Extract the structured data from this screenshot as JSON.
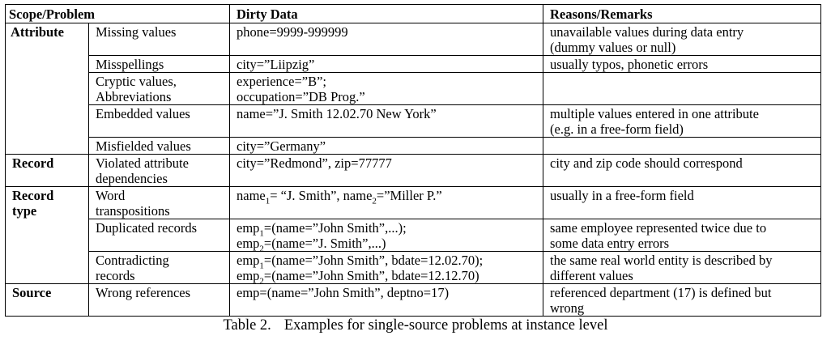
{
  "table": {
    "headers": {
      "scope": "Scope/Problem",
      "dirty": "Dirty Data",
      "remarks": "Reasons/Remarks"
    },
    "groups": [
      {
        "scope": "Attribute",
        "rows": [
          {
            "problem": [
              "Missing values"
            ],
            "dirty": [
              {
                "segments": [
                  {
                    "text": "phone=9999-999999"
                  }
                ]
              }
            ],
            "remarks": [
              "unavailable values during data entry",
              "(dummy values or null)"
            ]
          },
          {
            "problem": [
              "Misspellings"
            ],
            "dirty": [
              {
                "segments": [
                  {
                    "text": "city=”Liipzig”"
                  }
                ]
              }
            ],
            "remarks": [
              "usually typos, phonetic errors"
            ]
          },
          {
            "problem": [
              "Cryptic values,",
              "Abbreviations"
            ],
            "dirty": [
              {
                "segments": [
                  {
                    "text": "experience=”B”;"
                  }
                ]
              },
              {
                "segments": [
                  {
                    "text": "occupation=”DB Prog.”"
                  }
                ]
              }
            ],
            "remarks": []
          },
          {
            "problem": [
              "Embedded values"
            ],
            "dirty": [
              {
                "segments": [
                  {
                    "text": "name=”J. Smith 12.02.70 New York”"
                  }
                ]
              }
            ],
            "remarks": [
              "multiple values entered in one attribute",
              "(e.g. in a free-form field)"
            ]
          },
          {
            "problem": [
              "Misfielded values"
            ],
            "dirty": [
              {
                "segments": [
                  {
                    "text": "city=”Germany”"
                  }
                ]
              }
            ],
            "remarks": []
          }
        ]
      },
      {
        "scope": "Record",
        "rows": [
          {
            "problem": [
              "Violated attribute",
              "dependencies"
            ],
            "dirty": [
              {
                "segments": [
                  {
                    "text": "city=”Redmond”, zip=77777"
                  }
                ]
              }
            ],
            "remarks": [
              "city and zip code should correspond"
            ]
          }
        ]
      },
      {
        "scope": "Record type",
        "rows": [
          {
            "problem": [
              "Word",
              "transpositions"
            ],
            "dirty": [
              {
                "segments": [
                  {
                    "text": "name"
                  },
                  {
                    "sub": "1"
                  },
                  {
                    "text": "= “J. Smith”, name"
                  },
                  {
                    "sub": "2"
                  },
                  {
                    "text": "=”Miller P.”"
                  }
                ]
              }
            ],
            "remarks": [
              "usually in a free-form field"
            ]
          },
          {
            "problem": [
              "Duplicated records"
            ],
            "dirty": [
              {
                "segments": [
                  {
                    "text": "emp"
                  },
                  {
                    "sub": "1"
                  },
                  {
                    "text": "=(name=”John Smith”,...);"
                  }
                ]
              },
              {
                "segments": [
                  {
                    "text": "emp"
                  },
                  {
                    "sub": "2"
                  },
                  {
                    "text": "=(name=”J. Smith”,...)"
                  }
                ]
              }
            ],
            "remarks": [
              "same employee represented twice due to",
              "some data entry errors"
            ]
          },
          {
            "problem": [
              "Contradicting",
              "records"
            ],
            "dirty": [
              {
                "segments": [
                  {
                    "text": "emp"
                  },
                  {
                    "sub": "1"
                  },
                  {
                    "text": "=(name=”John Smith”, bdate=12.02.70);"
                  }
                ]
              },
              {
                "segments": [
                  {
                    "text": "emp"
                  },
                  {
                    "sub": "2"
                  },
                  {
                    "text": "=(name=”John Smith”, bdate=12.12.70)"
                  }
                ]
              }
            ],
            "remarks": [
              "the same real world entity is described by",
              "different values"
            ]
          }
        ]
      },
      {
        "scope": "Source",
        "rows": [
          {
            "problem": [
              "Wrong references"
            ],
            "dirty": [
              {
                "segments": [
                  {
                    "text": "emp=(name=”John Smith”, deptno=17)"
                  }
                ]
              }
            ],
            "remarks": [
              "referenced department (17) is defined but",
              "wrong"
            ]
          }
        ]
      }
    ]
  },
  "caption": {
    "number": "Table 2.",
    "text": "Examples for single-source problems at instance level"
  }
}
